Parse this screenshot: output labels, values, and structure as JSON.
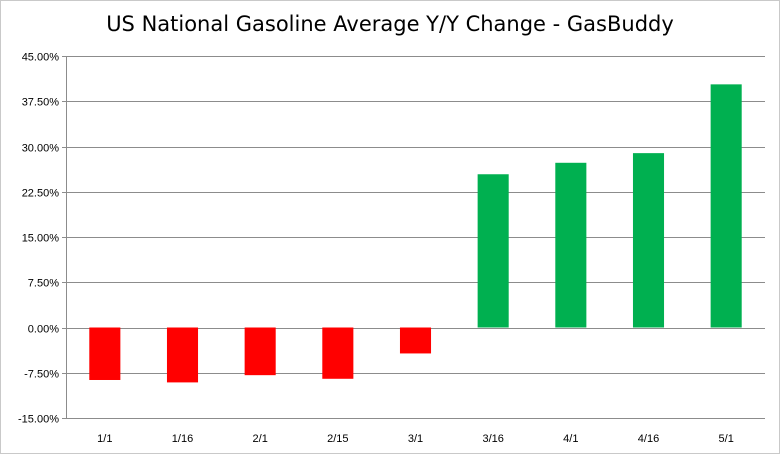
{
  "chart_data": {
    "type": "bar",
    "title": "US National Gasoline Average Y/Y  Change - GasBuddy",
    "xlabel": "",
    "ylabel": "",
    "categories": [
      "1/1",
      "1/16",
      "2/1",
      "2/15",
      "3/1",
      "3/16",
      "4/1",
      "4/16",
      "5/1"
    ],
    "values": [
      -8.7,
      -9.1,
      -7.9,
      -8.5,
      -4.3,
      25.4,
      27.3,
      28.9,
      40.3
    ],
    "ylim": [
      -15,
      45
    ],
    "yticks": [
      45,
      37.5,
      30,
      22.5,
      15,
      7.5,
      0,
      -7.5,
      -15
    ],
    "ytick_labels": [
      "45.00%",
      "37.50%",
      "30.00%",
      "22.50%",
      "15.00%",
      "7.50%",
      "0.00%",
      "-7.50%",
      "-15.00%"
    ],
    "grid": true,
    "colors": {
      "positive": "#00b050",
      "negative": "#ff0000",
      "grid": "#8c8c8c",
      "axis": "#8c8c8c"
    }
  }
}
